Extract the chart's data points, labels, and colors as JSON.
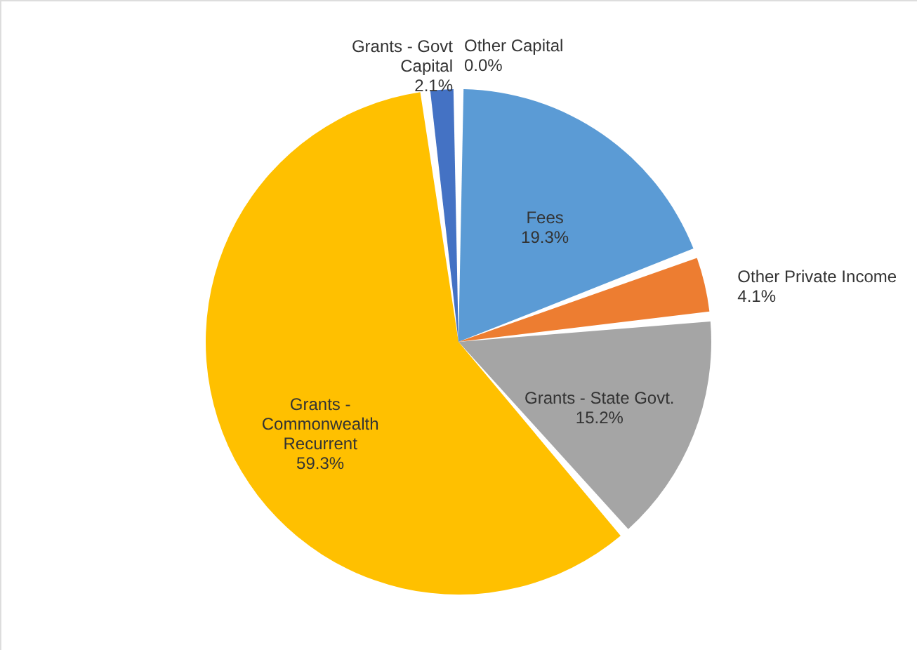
{
  "chart_data": {
    "type": "pie",
    "categories": [
      "Fees",
      "Other Private Income",
      "Grants - State Govt.",
      "Grants - Commonwealth Recurrent",
      "Grants - Govt Capital",
      "Other Capital"
    ],
    "values": [
      19.3,
      4.1,
      15.2,
      59.3,
      2.1,
      0.0
    ],
    "colors": [
      "#5b9bd5",
      "#ed7d31",
      "#a5a5a5",
      "#ffc000",
      "#4472c4",
      "#70ad47"
    ],
    "value_labels": [
      "19.3%",
      "4.1%",
      "15.2%",
      "59.3%",
      "2.1%",
      "0.0%"
    ]
  }
}
